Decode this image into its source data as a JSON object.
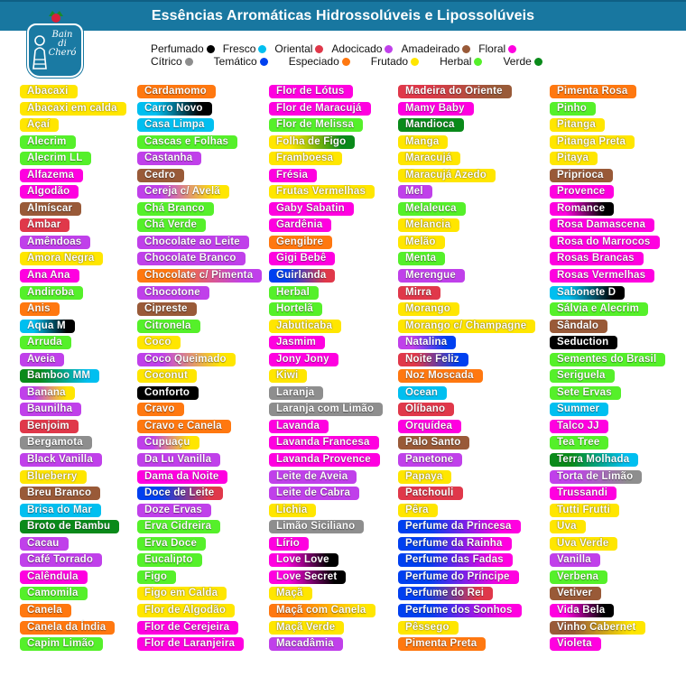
{
  "header": {
    "title": "Essências Arromáticas Hidrossolúveis e Lipossolúveis"
  },
  "logo": {
    "text": "Bain di Cheró"
  },
  "categories": {
    "P": {
      "label": "Perfumado",
      "color": "#000000"
    },
    "F": {
      "label": "Fresco",
      "color": "#00bff0"
    },
    "O": {
      "label": "Oriental",
      "color": "#e0384a"
    },
    "A": {
      "label": "Adocicado",
      "color": "#c040ea"
    },
    "M": {
      "label": "Amadeirado",
      "color": "#995a38"
    },
    "L": {
      "label": "Floral",
      "color": "#ff00e0"
    },
    "C": {
      "label": "Cítrico",
      "color": "#8e8e8e"
    },
    "T": {
      "label": "Temático",
      "color": "#0040f0"
    },
    "E": {
      "label": "Especiado",
      "color": "#ff7810"
    },
    "U": {
      "label": "Frutado",
      "color": "#ffe600"
    },
    "H": {
      "label": "Herbal",
      "color": "#55f02a"
    },
    "V": {
      "label": "Verde",
      "color": "#0a8a1a"
    }
  },
  "legend_rows": [
    [
      "P",
      "F",
      "O",
      "A",
      "M",
      "L"
    ],
    [
      "C",
      "T",
      "E",
      "U",
      "H",
      "V"
    ]
  ],
  "columns": [
    [
      [
        "Abacaxi",
        "U"
      ],
      [
        "Abacaxi em calda",
        "U"
      ],
      [
        "Açaí",
        "U"
      ],
      [
        "Alecrim",
        "H"
      ],
      [
        "Alecrim LL",
        "H"
      ],
      [
        "Alfazema",
        "L"
      ],
      [
        "Algodão",
        "L"
      ],
      [
        "Almíscar",
        "M"
      ],
      [
        "Âmbar",
        "O"
      ],
      [
        "Amêndoas",
        "A"
      ],
      [
        "Amora Negra",
        "U"
      ],
      [
        "Ana Ana",
        "L"
      ],
      [
        "Andiroba",
        "H"
      ],
      [
        "Anis",
        "E"
      ],
      [
        "Aqua M",
        "FP"
      ],
      [
        "Arruda",
        "H"
      ],
      [
        "Aveia",
        "A"
      ],
      [
        "Bamboo MM",
        "VF"
      ],
      [
        "Banana",
        "AU"
      ],
      [
        "Baunilha",
        "A"
      ],
      [
        "Benjoim",
        "O"
      ],
      [
        "Bergamota",
        "C"
      ],
      [
        "Black Vanilla",
        "A"
      ],
      [
        "Blueberry",
        "U"
      ],
      [
        "Breu Branco",
        "M"
      ],
      [
        "Brisa do Mar",
        "F"
      ],
      [
        "Broto de Bambu",
        "V"
      ],
      [
        "Cacau",
        "A"
      ],
      [
        "Café Torrado",
        "A"
      ],
      [
        "Calêndula",
        "L"
      ],
      [
        "Camomila",
        "H"
      ],
      [
        "Canela",
        "E"
      ],
      [
        "Canela da Índia",
        "E"
      ],
      [
        "Capim Limão",
        "H"
      ]
    ],
    [
      [
        "Cardamomo",
        "E"
      ],
      [
        "Carro Novo",
        "FP"
      ],
      [
        "Casa Limpa",
        "F"
      ],
      [
        "Cascas e Folhas",
        "H"
      ],
      [
        "Castanha",
        "A"
      ],
      [
        "Cedro",
        "M"
      ],
      [
        "Cereja c/ Avelã",
        "AU"
      ],
      [
        "Chá Branco",
        "H"
      ],
      [
        "Chá Verde",
        "H"
      ],
      [
        "Chocolate ao Leite",
        "A"
      ],
      [
        "Chocolate Branco",
        "A"
      ],
      [
        "Chocolate c/ Pimenta",
        "EA"
      ],
      [
        "Chocotone",
        "A"
      ],
      [
        "Cipreste",
        "M"
      ],
      [
        "Citronela",
        "H"
      ],
      [
        "Coco",
        "U"
      ],
      [
        "Coco Queimado",
        "AU"
      ],
      [
        "Coconut",
        "U"
      ],
      [
        "Conforto",
        "P"
      ],
      [
        "Cravo",
        "E"
      ],
      [
        "Cravo e Canela",
        "E"
      ],
      [
        "Cupuaçu",
        "AU"
      ],
      [
        "Da Lu Vanilla",
        "A"
      ],
      [
        "Dama da Noite",
        "L"
      ],
      [
        "Doce de Leite",
        "TO"
      ],
      [
        "Doze Ervas",
        "A"
      ],
      [
        "Erva Cidreira",
        "H"
      ],
      [
        "Erva Doce",
        "H"
      ],
      [
        "Eucalipto",
        "H"
      ],
      [
        "Figo",
        "H"
      ],
      [
        "Figo em Calda",
        "U"
      ],
      [
        "Flor de Algodão",
        "U"
      ],
      [
        "Flor de Cerejeira",
        "L"
      ],
      [
        "Flor de Laranjeira",
        "L"
      ]
    ],
    [
      [
        "Flor de Lótus",
        "L"
      ],
      [
        "Flor de Maracujá",
        "L"
      ],
      [
        "Flor de Melissa",
        "H"
      ],
      [
        "Folha de Figo",
        "UV"
      ],
      [
        "Framboesa",
        "U"
      ],
      [
        "Frésia",
        "L"
      ],
      [
        "Frutas Vermelhas",
        "U"
      ],
      [
        "Gaby Sabatin",
        "L"
      ],
      [
        "Gardênia",
        "L"
      ],
      [
        "Gengibre",
        "E"
      ],
      [
        "Gigi Bebê",
        "L"
      ],
      [
        "Guirlanda",
        "TO"
      ],
      [
        "Herbal",
        "H"
      ],
      [
        "Hortelã",
        "H"
      ],
      [
        "Jabuticaba",
        "U"
      ],
      [
        "Jasmim",
        "L"
      ],
      [
        "Jony Jony",
        "L"
      ],
      [
        "Kiwi",
        "U"
      ],
      [
        "Laranja",
        "C"
      ],
      [
        "Laranja com Limão",
        "C"
      ],
      [
        "Lavanda",
        "L"
      ],
      [
        "Lavanda Francesa",
        "L"
      ],
      [
        "Lavanda Provence",
        "L"
      ],
      [
        "Leite de Aveia",
        "A"
      ],
      [
        "Leite de Cabra",
        "A"
      ],
      [
        "Lichia",
        "U"
      ],
      [
        "Limão Siciliano",
        "C"
      ],
      [
        "Lírio",
        "L"
      ],
      [
        "Love Love",
        "LP"
      ],
      [
        "Love Secret",
        "LP"
      ],
      [
        "Maçã",
        "U"
      ],
      [
        "Maçã com Canela",
        "EU"
      ],
      [
        "Maçã Verde",
        "U"
      ],
      [
        "Macadâmia",
        "A"
      ]
    ],
    [
      [
        "Madeira do Oriente",
        "OM"
      ],
      [
        "Mamy Baby",
        "L"
      ],
      [
        "Mandioca",
        "V"
      ],
      [
        "Manga",
        "U"
      ],
      [
        "Maracujá",
        "U"
      ],
      [
        "Maracujá Azedo",
        "U"
      ],
      [
        "Mel",
        "A"
      ],
      [
        "Melaleuca",
        "H"
      ],
      [
        "Melancia",
        "U"
      ],
      [
        "Melão",
        "U"
      ],
      [
        "Menta",
        "H"
      ],
      [
        "Merengue",
        "A"
      ],
      [
        "Mirra",
        "O"
      ],
      [
        "Morango",
        "U"
      ],
      [
        "Morango c/ Champagne",
        "U"
      ],
      [
        "Natalina",
        "AT"
      ],
      [
        "Noite Feliz",
        "OT"
      ],
      [
        "Noz Moscada",
        "E"
      ],
      [
        "Ocean",
        "F"
      ],
      [
        "Olíbano",
        "O"
      ],
      [
        "Orquídea",
        "L"
      ],
      [
        "Palo Santo",
        "M"
      ],
      [
        "Panetone",
        "A"
      ],
      [
        "Papaya",
        "U"
      ],
      [
        "Patchouli",
        "O"
      ],
      [
        "Pêra",
        "U"
      ],
      [
        "Perfume da Princesa",
        "TL"
      ],
      [
        "Perfume da Rainha",
        "TL"
      ],
      [
        "Perfume das Fadas",
        "TL"
      ],
      [
        "Perfume do Príncipe",
        "TL"
      ],
      [
        "Perfume do Rei",
        "TO"
      ],
      [
        "Perfume dos Sonhos",
        "TL"
      ],
      [
        "Pêssego",
        "U"
      ],
      [
        "Pimenta Preta",
        "E"
      ]
    ],
    [
      [
        "Pimenta Rosa",
        "E"
      ],
      [
        "Pinho",
        "H"
      ],
      [
        "Pitanga",
        "U"
      ],
      [
        "Pitanga Preta",
        "U"
      ],
      [
        "Pitaya",
        "U"
      ],
      [
        "Priprioca",
        "M"
      ],
      [
        "Provence",
        "L"
      ],
      [
        "Romance",
        "LP"
      ],
      [
        "Rosa Damascena",
        "L"
      ],
      [
        "Rosa do Marrocos",
        "L"
      ],
      [
        "Rosas Brancas",
        "L"
      ],
      [
        "Rosas Vermelhas",
        "L"
      ],
      [
        "Sabonete D",
        "FP"
      ],
      [
        "Sálvia e Alecrim",
        "H"
      ],
      [
        "Sândalo",
        "M"
      ],
      [
        "Seduction",
        "P"
      ],
      [
        "Sementes do Brasil",
        "H"
      ],
      [
        "Seriguela",
        "H"
      ],
      [
        "Sete Ervas",
        "H"
      ],
      [
        "Summer",
        "F"
      ],
      [
        "Talco JJ",
        "L"
      ],
      [
        "Tea Tree",
        "H"
      ],
      [
        "Terra Molhada",
        "VF"
      ],
      [
        "Torta de Limão",
        "AC"
      ],
      [
        "Trussandi",
        "L"
      ],
      [
        "Tutti Frutti",
        "U"
      ],
      [
        "Uva",
        "U"
      ],
      [
        "Uva Verde",
        "U"
      ],
      [
        "Vanilla",
        "A"
      ],
      [
        "Verbena",
        "H"
      ],
      [
        "Vetiver",
        "M"
      ],
      [
        "Vida Bela",
        "LP"
      ],
      [
        "Vinho Cabernet",
        "MU"
      ],
      [
        "Violeta",
        "L"
      ]
    ]
  ]
}
